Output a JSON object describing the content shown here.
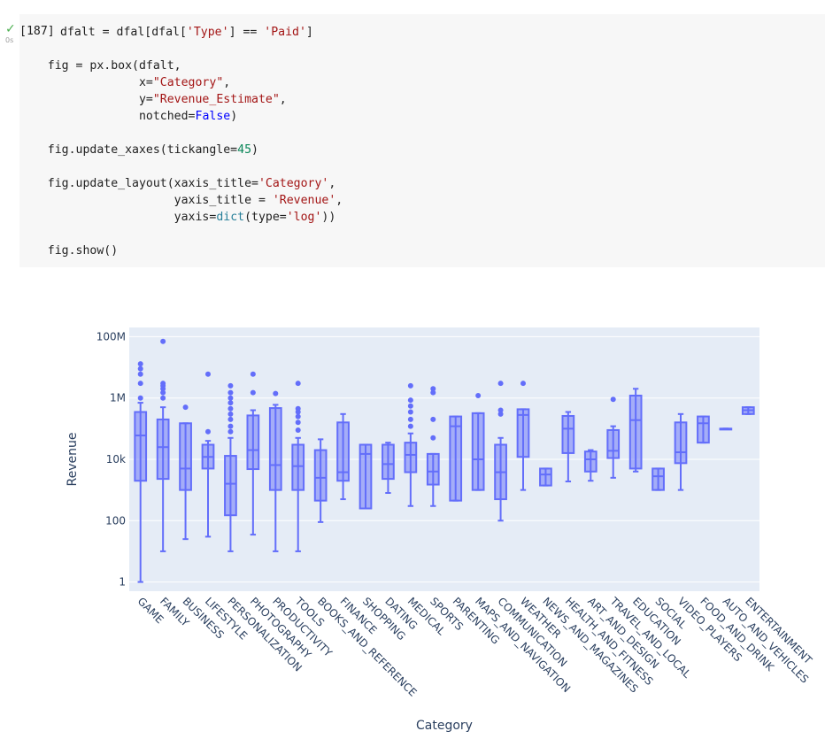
{
  "cell": {
    "status_icon": "check-icon",
    "exec_time": "0s",
    "prompt": "[187]",
    "code_lines": [
      [
        [
          "p",
          "dfalt = dfal[dfal["
        ],
        [
          "s",
          "'Type'"
        ],
        [
          "p",
          "] == "
        ],
        [
          "s",
          "'Paid'"
        ],
        [
          "p",
          "]"
        ]
      ],
      [],
      [
        [
          "p",
          "    fig = px.box(dfalt,"
        ]
      ],
      [
        [
          "p",
          "                 x="
        ],
        [
          "s",
          "\"Category\""
        ],
        [
          "p",
          ","
        ]
      ],
      [
        [
          "p",
          "                 y="
        ],
        [
          "s",
          "\"Revenue_Estimate\""
        ],
        [
          "p",
          ","
        ]
      ],
      [
        [
          "p",
          "                 notched="
        ],
        [
          "k",
          "False"
        ],
        [
          "p",
          ")"
        ]
      ],
      [],
      [
        [
          "p",
          "    fig.update_xaxes(tickangle="
        ],
        [
          "n",
          "45"
        ],
        [
          "p",
          ")"
        ]
      ],
      [],
      [
        [
          "p",
          "    fig.update_layout(xaxis_title="
        ],
        [
          "s",
          "'Category'"
        ],
        [
          "p",
          ","
        ]
      ],
      [
        [
          "p",
          "                      yaxis_title = "
        ],
        [
          "s",
          "'Revenue'"
        ],
        [
          "p",
          ","
        ]
      ],
      [
        [
          "p",
          "                      yaxis="
        ],
        [
          "b",
          "dict"
        ],
        [
          "p",
          "(type="
        ],
        [
          "s",
          "'log'"
        ],
        [
          "p",
          "))"
        ]
      ],
      [],
      [
        [
          "p",
          "    fig.show()"
        ]
      ]
    ]
  },
  "chart_data": {
    "type": "box",
    "x_title": "Category",
    "y_title": "Revenue",
    "y_scale": "log",
    "y_range": [
      0.5,
      200000000
    ],
    "y_ticks": [
      {
        "v": 1,
        "label": "1"
      },
      {
        "v": 100,
        "label": "100"
      },
      {
        "v": 10000,
        "label": "10k"
      },
      {
        "v": 1000000,
        "label": "1M"
      },
      {
        "v": 100000000,
        "label": "100M"
      }
    ],
    "color": "#636efa",
    "plot_bg": "#e5ecf6",
    "categories": [
      {
        "name": "GAME",
        "min": 1,
        "q1": 2000,
        "median": 60000,
        "q3": 350000,
        "max": 700000,
        "outliers": [
          1000000,
          3000000,
          6000000,
          9000000,
          13000000
        ]
      },
      {
        "name": "FAMILY",
        "min": 10,
        "q1": 2300,
        "median": 25000,
        "q3": 200000,
        "max": 500000,
        "outliers": [
          1000000,
          1500000,
          2000000,
          2500000,
          3000000,
          70000000
        ]
      },
      {
        "name": "BUSINESS",
        "min": 25,
        "q1": 1000,
        "median": 5000,
        "q3": 150000,
        "max": 150000,
        "outliers": [
          500000
        ]
      },
      {
        "name": "LIFESTYLE",
        "min": 30,
        "q1": 5000,
        "median": 12000,
        "q3": 30000,
        "max": 40000,
        "outliers": [
          80000,
          6000000
        ]
      },
      {
        "name": "PERSONALIZATION",
        "min": 10,
        "q1": 150,
        "median": 1600,
        "q3": 13000,
        "max": 50000,
        "outliers": [
          80000,
          120000,
          200000,
          300000,
          450000,
          700000,
          1000000,
          1500000,
          2500000
        ]
      },
      {
        "name": "PHOTOGRAPHY",
        "min": 35,
        "q1": 4800,
        "median": 20000,
        "q3": 270000,
        "max": 400000,
        "outliers": [
          1500000,
          6000000
        ]
      },
      {
        "name": "PRODUCTIVITY",
        "min": 10,
        "q1": 1000,
        "median": 6500,
        "q3": 470000,
        "max": 600000,
        "outliers": [
          1400000
        ]
      },
      {
        "name": "TOOLS",
        "min": 10,
        "q1": 1000,
        "median": 6000,
        "q3": 30000,
        "max": 50000,
        "outliers": [
          90000,
          160000,
          250000,
          350000,
          450000,
          3000000
        ]
      },
      {
        "name": "BOOKS_AND_REFERENCE",
        "min": 90,
        "q1": 450,
        "median": 2500,
        "q3": 20000,
        "max": 45000,
        "outliers": []
      },
      {
        "name": "FINANCE",
        "min": 500,
        "q1": 2000,
        "median": 3800,
        "q3": 160000,
        "max": 300000,
        "outliers": []
      },
      {
        "name": "SHOPPING",
        "min": 250,
        "q1": 250,
        "median": 15000,
        "q3": 30000,
        "max": 30000,
        "outliers": []
      },
      {
        "name": "DATING",
        "min": 800,
        "q1": 2300,
        "median": 7000,
        "q3": 30000,
        "max": 35000,
        "outliers": []
      },
      {
        "name": "MEDICAL",
        "min": 300,
        "q1": 3800,
        "median": 14000,
        "q3": 35000,
        "max": 70000,
        "outliers": [
          120000,
          200000,
          350000,
          550000,
          850000,
          2500000
        ]
      },
      {
        "name": "SPORTS",
        "min": 300,
        "q1": 1500,
        "median": 4000,
        "q3": 15000,
        "max": 15000,
        "outliers": [
          50000,
          200000,
          1500000,
          2000000
        ]
      },
      {
        "name": "PARENTING",
        "min": 450,
        "q1": 450,
        "median": 120000,
        "q3": 250000,
        "max": 250000,
        "outliers": []
      },
      {
        "name": "MAPS_AND_NAVIGATION",
        "min": 1000,
        "q1": 1000,
        "median": 10000,
        "q3": 320000,
        "max": 320000,
        "outliers": [
          1200000
        ]
      },
      {
        "name": "COMMUNICATION",
        "min": 100,
        "q1": 500,
        "median": 3800,
        "q3": 30000,
        "max": 50000,
        "outliers": [
          300000,
          400000,
          3000000
        ]
      },
      {
        "name": "WEATHER",
        "min": 1000,
        "q1": 12000,
        "median": 280000,
        "q3": 430000,
        "max": 430000,
        "outliers": [
          3000000
        ]
      },
      {
        "name": "NEWS_AND_MAGAZINES",
        "min": 1400,
        "q1": 1400,
        "median": 3200,
        "q3": 5000,
        "max": 5000,
        "outliers": []
      },
      {
        "name": "HEALTH_AND_FITNESS",
        "min": 1900,
        "q1": 16000,
        "median": 100000,
        "q3": 260000,
        "max": 350000,
        "outliers": []
      },
      {
        "name": "ART_AND_DESIGN",
        "min": 2000,
        "q1": 4000,
        "median": 10000,
        "q3": 18000,
        "max": 20000,
        "outliers": []
      },
      {
        "name": "TRAVEL_AND_LOCAL",
        "min": 2500,
        "q1": 11000,
        "median": 19000,
        "q3": 90000,
        "max": 120000,
        "outliers": [
          900000
        ]
      },
      {
        "name": "EDUCATION",
        "min": 4000,
        "q1": 5000,
        "median": 190000,
        "q3": 1200000,
        "max": 2000000,
        "outliers": []
      },
      {
        "name": "SOCIAL",
        "min": 1000,
        "q1": 1000,
        "median": 2800,
        "q3": 5000,
        "max": 5000,
        "outliers": []
      },
      {
        "name": "VIDEO_PLAYERS",
        "min": 1000,
        "q1": 7500,
        "median": 17000,
        "q3": 160000,
        "max": 300000,
        "outliers": []
      },
      {
        "name": "FOOD_AND_DRINK",
        "min": 35000,
        "q1": 35000,
        "median": 150000,
        "q3": 250000,
        "max": 250000,
        "outliers": []
      },
      {
        "name": "AUTO_AND_VEHICLES",
        "min": 100000,
        "q1": 100000,
        "median": 100000,
        "q3": 100000,
        "max": 100000,
        "outliers": []
      },
      {
        "name": "ENTERTAINMENT",
        "min": 300000,
        "q1": 300000,
        "median": 400000,
        "q3": 500000,
        "max": 500000,
        "outliers": []
      }
    ]
  }
}
